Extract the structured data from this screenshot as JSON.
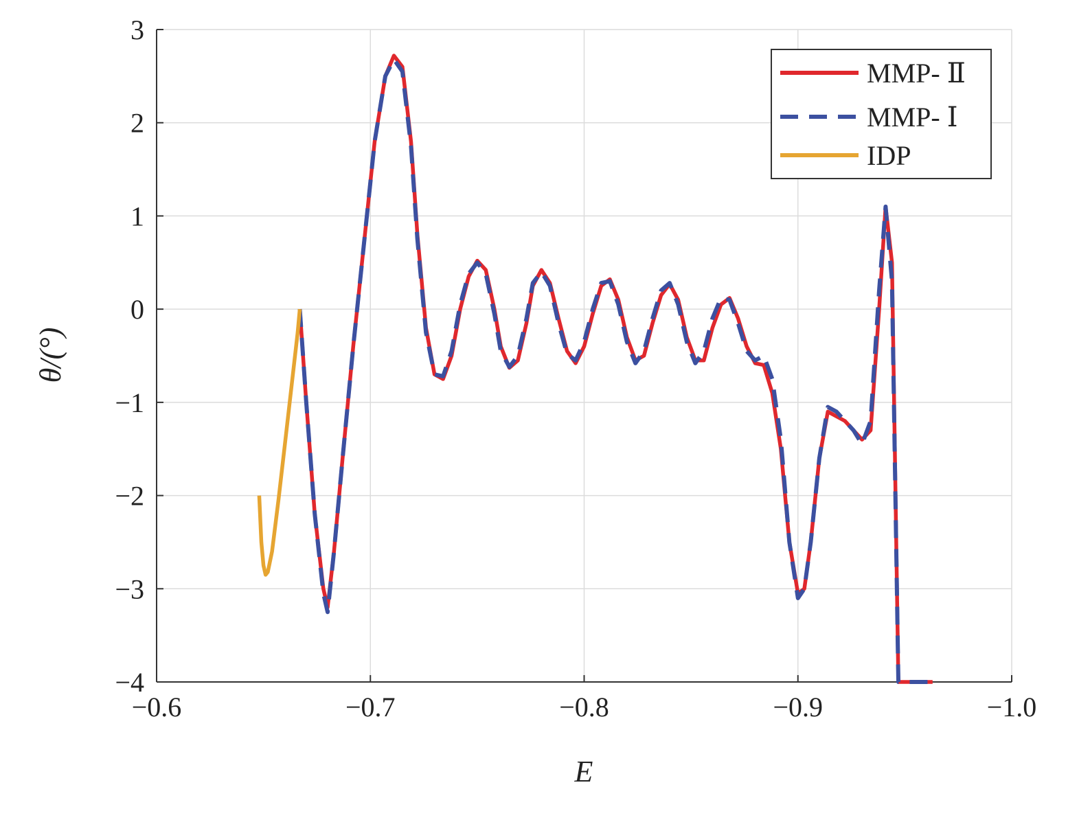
{
  "chart_data": {
    "type": "line",
    "xlabel": "E",
    "ylabel": "θ/(°)",
    "xlim": [
      -0.6,
      -1.0
    ],
    "ylim": [
      -4,
      3
    ],
    "xticks": [
      -0.6,
      -0.7,
      -0.8,
      -0.9,
      -1.0
    ],
    "xtick_labels": [
      "−0.6",
      "−0.7",
      "−0.8",
      "−0.9",
      "−1.0"
    ],
    "yticks": [
      3,
      2,
      1,
      0,
      -1,
      -2,
      -3,
      -4
    ],
    "ytick_labels": [
      "3",
      "2",
      "1",
      "0",
      "−1",
      "−2",
      "−3",
      "−4"
    ],
    "grid": true,
    "legend_position": "top-right",
    "series": [
      {
        "name": "MMP- Ⅱ",
        "color": "#e0282d",
        "style": "solid",
        "x": [
          -0.667,
          -0.67,
          -0.674,
          -0.678,
          -0.68,
          -0.683,
          -0.687,
          -0.692,
          -0.697,
          -0.702,
          -0.707,
          -0.711,
          -0.715,
          -0.719,
          -0.722,
          -0.726,
          -0.73,
          -0.734,
          -0.738,
          -0.742,
          -0.746,
          -0.75,
          -0.754,
          -0.758,
          -0.761,
          -0.765,
          -0.769,
          -0.773,
          -0.776,
          -0.78,
          -0.784,
          -0.788,
          -0.792,
          -0.796,
          -0.8,
          -0.804,
          -0.808,
          -0.812,
          -0.816,
          -0.82,
          -0.824,
          -0.828,
          -0.832,
          -0.836,
          -0.84,
          -0.844,
          -0.848,
          -0.852,
          -0.856,
          -0.86,
          -0.864,
          -0.868,
          -0.872,
          -0.876,
          -0.88,
          -0.884,
          -0.888,
          -0.892,
          -0.896,
          -0.9,
          -0.903,
          -0.906,
          -0.91,
          -0.914,
          -0.918,
          -0.922,
          -0.926,
          -0.93,
          -0.934,
          -0.938,
          -0.941,
          -0.944,
          -0.947,
          -0.95,
          -0.953,
          -0.955,
          -0.957,
          -0.96,
          -0.963
        ],
        "y": [
          0.0,
          -1.0,
          -2.2,
          -3.0,
          -3.2,
          -2.6,
          -1.6,
          -0.4,
          0.7,
          1.8,
          2.5,
          2.72,
          2.6,
          1.8,
          0.8,
          -0.2,
          -0.7,
          -0.75,
          -0.5,
          0.0,
          0.35,
          0.52,
          0.42,
          0.0,
          -0.4,
          -0.63,
          -0.55,
          -0.15,
          0.25,
          0.42,
          0.28,
          -0.1,
          -0.45,
          -0.58,
          -0.4,
          -0.05,
          0.25,
          0.32,
          0.1,
          -0.3,
          -0.55,
          -0.5,
          -0.15,
          0.15,
          0.27,
          0.1,
          -0.3,
          -0.55,
          -0.55,
          -0.2,
          0.05,
          0.12,
          -0.1,
          -0.4,
          -0.58,
          -0.6,
          -0.9,
          -1.5,
          -2.5,
          -3.05,
          -3.0,
          -2.5,
          -1.6,
          -1.1,
          -1.15,
          -1.2,
          -1.3,
          -1.4,
          -1.3,
          0.0,
          1.1,
          0.5,
          -4.0,
          -4.0,
          -4.0,
          -4.0,
          -4.0,
          -4.0,
          -4.0
        ]
      },
      {
        "name": "MMP- Ⅰ",
        "color": "#3c50a0",
        "style": "dashed",
        "x": [
          -0.667,
          -0.67,
          -0.674,
          -0.678,
          -0.68,
          -0.683,
          -0.687,
          -0.692,
          -0.697,
          -0.702,
          -0.707,
          -0.711,
          -0.715,
          -0.719,
          -0.722,
          -0.726,
          -0.73,
          -0.734,
          -0.738,
          -0.742,
          -0.746,
          -0.75,
          -0.754,
          -0.758,
          -0.761,
          -0.765,
          -0.769,
          -0.773,
          -0.776,
          -0.78,
          -0.784,
          -0.788,
          -0.792,
          -0.796,
          -0.8,
          -0.804,
          -0.808,
          -0.812,
          -0.816,
          -0.82,
          -0.824,
          -0.828,
          -0.832,
          -0.836,
          -0.84,
          -0.844,
          -0.848,
          -0.852,
          -0.856,
          -0.86,
          -0.864,
          -0.868,
          -0.872,
          -0.876,
          -0.88,
          -0.884,
          -0.888,
          -0.892,
          -0.896,
          -0.9,
          -0.903,
          -0.906,
          -0.91,
          -0.914,
          -0.918,
          -0.922,
          -0.926,
          -0.93,
          -0.934,
          -0.938,
          -0.941,
          -0.944,
          -0.947,
          -0.95,
          -0.953,
          -0.955,
          -0.957,
          -0.96,
          -0.963
        ],
        "y": [
          0.0,
          -1.0,
          -2.2,
          -3.05,
          -3.25,
          -2.6,
          -1.6,
          -0.4,
          0.7,
          1.8,
          2.5,
          2.68,
          2.55,
          1.75,
          0.75,
          -0.25,
          -0.7,
          -0.72,
          -0.45,
          0.05,
          0.38,
          0.5,
          0.38,
          -0.05,
          -0.45,
          -0.62,
          -0.5,
          -0.1,
          0.28,
          0.4,
          0.25,
          -0.15,
          -0.48,
          -0.55,
          -0.35,
          0.0,
          0.28,
          0.3,
          0.05,
          -0.35,
          -0.58,
          -0.45,
          -0.1,
          0.2,
          0.28,
          0.05,
          -0.35,
          -0.58,
          -0.45,
          -0.1,
          0.12,
          0.1,
          -0.15,
          -0.45,
          -0.55,
          -0.5,
          -0.75,
          -1.4,
          -2.5,
          -3.1,
          -3.0,
          -2.5,
          -1.6,
          -1.05,
          -1.1,
          -1.2,
          -1.3,
          -1.45,
          -1.2,
          0.2,
          1.1,
          0.3,
          -4.0,
          -4.0,
          -4.0,
          -4.0,
          -4.0,
          -4.0,
          -4.0
        ]
      },
      {
        "name": "IDP",
        "color": "#e6a532",
        "style": "solid",
        "x": [
          -0.648,
          -0.649,
          -0.65,
          -0.651,
          -0.652,
          -0.654,
          -0.657,
          -0.66,
          -0.663,
          -0.666,
          -0.667
        ],
        "y": [
          -2.0,
          -2.5,
          -2.75,
          -2.85,
          -2.82,
          -2.6,
          -2.05,
          -1.45,
          -0.85,
          -0.25,
          0.0
        ]
      }
    ]
  }
}
